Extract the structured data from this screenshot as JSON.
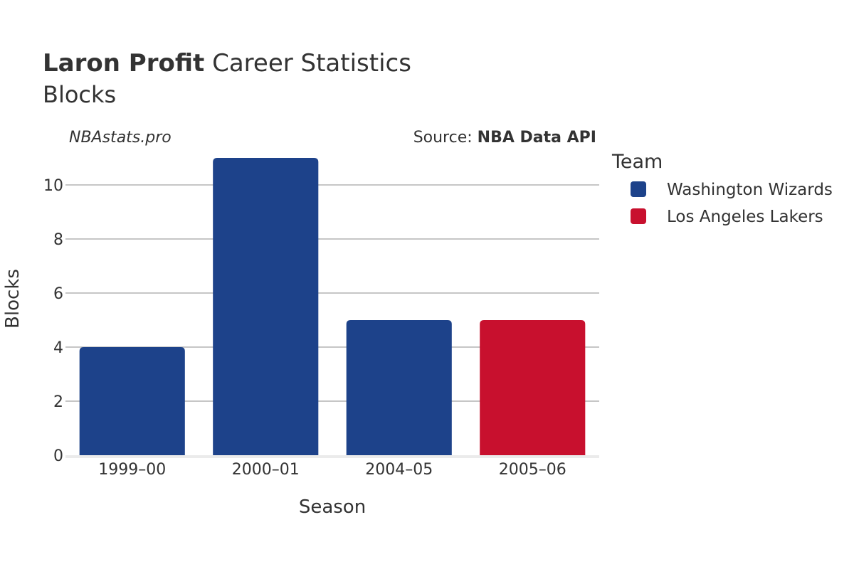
{
  "title": {
    "player": "Laron Profit",
    "rest": "Career Statistics",
    "subtitle": "Blocks"
  },
  "watermark": "NBAstats.pro",
  "source": {
    "prefix": "Source: ",
    "name": "NBA Data API"
  },
  "legend": {
    "title": "Team",
    "items": [
      {
        "label": "Washington Wizards",
        "color": "#1d428a"
      },
      {
        "label": "Los Angeles Lakers",
        "color": "#c8102e"
      }
    ]
  },
  "chart_data": {
    "type": "bar",
    "categories": [
      "1999–00",
      "2000–01",
      "2004–05",
      "2005–06"
    ],
    "values": [
      4,
      11,
      5,
      5
    ],
    "teams": [
      "Washington Wizards",
      "Washington Wizards",
      "Washington Wizards",
      "Los Angeles Lakers"
    ],
    "xlabel": "Season",
    "ylabel": "Blocks",
    "ylim": [
      0,
      11
    ],
    "yticks": [
      0,
      2,
      4,
      6,
      8,
      10
    ],
    "grid": true,
    "legend_position": "right"
  }
}
